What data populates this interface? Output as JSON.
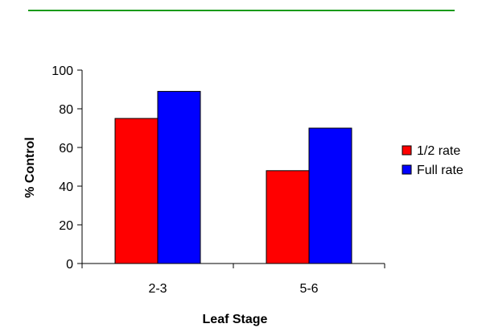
{
  "colors": {
    "header_rule": "#1a9a1a",
    "axis": "#000000",
    "bar_outline": "#000000",
    "background": "#ffffff"
  },
  "chart_data": {
    "type": "bar",
    "title": "",
    "xlabel": "Leaf Stage",
    "ylabel": "% Control",
    "categories": [
      "2-3",
      "5-6"
    ],
    "series": [
      {
        "name": "1/2 rate",
        "color": "#ff0000",
        "values": [
          75,
          48
        ]
      },
      {
        "name": "Full rate",
        "color": "#0000ff",
        "values": [
          89,
          70
        ]
      }
    ],
    "ylim": [
      0,
      100
    ],
    "yticks": [
      0,
      20,
      40,
      60,
      80,
      100
    ],
    "grid": false,
    "legend": {
      "position": "right"
    }
  }
}
